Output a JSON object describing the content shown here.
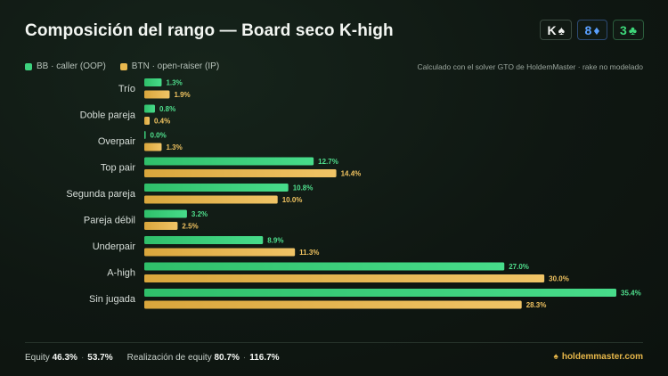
{
  "header": {
    "title": "Composición del rango — Board seco K-high",
    "cards": [
      {
        "rank": "K",
        "suit": "♠",
        "color": "#f2f4f2",
        "border": "#3a4a40"
      },
      {
        "rank": "8",
        "suit": "♦",
        "color": "#5aa0ff",
        "border": "#2d4a73"
      },
      {
        "rank": "3",
        "suit": "♣",
        "color": "#3ed87a",
        "border": "#2b5c3c"
      }
    ]
  },
  "legend": {
    "bb": "BB · caller (OOP)",
    "btn": "BTN · open-raiser (IP)"
  },
  "note": "Calculado con el solver GTO de HoldemMaster · rake no modelado",
  "colors": {
    "bb": "#3dd27e",
    "btn": "#e9b84e",
    "bb_label": "#4fdf8d",
    "btn_label": "#efc260"
  },
  "chart_data": {
    "type": "bar",
    "orientation": "horizontal",
    "categories": [
      "Trío",
      "Doble pareja",
      "Overpair",
      "Top pair",
      "Segunda pareja",
      "Pareja débil",
      "Underpair",
      "A-high",
      "Sin jugada"
    ],
    "series": [
      {
        "name": "BB · caller (OOP)",
        "values": [
          1.3,
          0.8,
          0.0,
          12.7,
          10.8,
          3.2,
          8.9,
          27.0,
          35.4
        ],
        "labels": [
          "1.3%",
          "0.8%",
          "0.0%",
          "12.7%",
          "10.8%",
          "3.2%",
          "8.9%",
          "27.0%",
          "35.4%"
        ]
      },
      {
        "name": "BTN · open-raiser (IP)",
        "values": [
          1.9,
          0.4,
          1.3,
          14.4,
          10.0,
          2.5,
          11.3,
          30.0,
          28.3
        ],
        "labels": [
          "1.9%",
          "0.4%",
          "1.3%",
          "14.4%",
          "10.0%",
          "2.5%",
          "11.3%",
          "30.0%",
          "28.3%"
        ]
      }
    ],
    "xlim": [
      0,
      35.4
    ],
    "grid": false,
    "legend_position": "top-left"
  },
  "footer": {
    "equity_label": "Equity",
    "equity_bb": "46.3%",
    "equity_btn": "53.7%",
    "sep": "·",
    "realization_label": "Realización de equity",
    "realization_bb": "80.7%",
    "realization_btn": "116.7%",
    "brand": "holdemmaster.com",
    "brand_icon": "spade-icon"
  }
}
